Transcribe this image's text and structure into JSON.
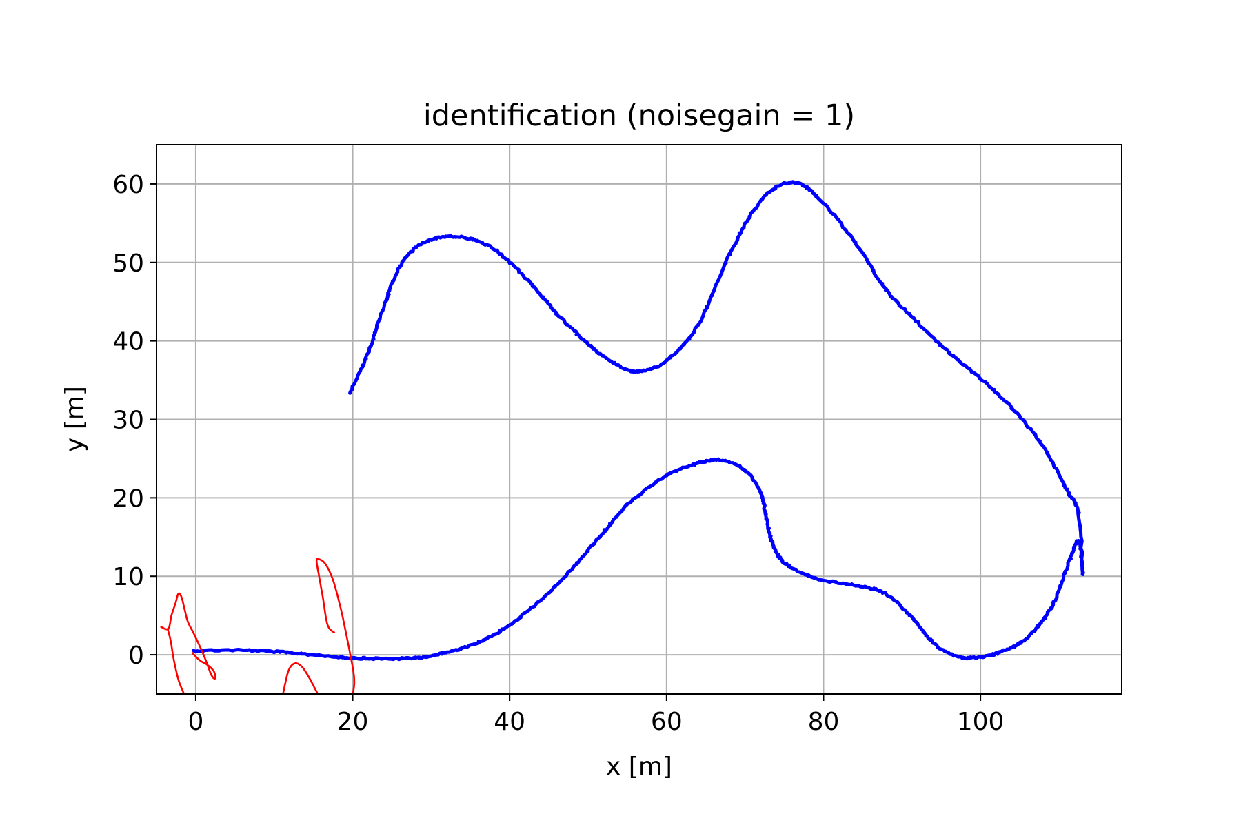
{
  "chart_data": {
    "type": "line",
    "title": "identification (noisegain = 1)",
    "xlabel": "x [m]",
    "ylabel": "y [m]",
    "xlim": [
      -5,
      118
    ],
    "ylim": [
      -5,
      65
    ],
    "xticks": [
      0,
      20,
      40,
      60,
      80,
      100
    ],
    "yticks": [
      0,
      10,
      20,
      30,
      40,
      50,
      60
    ],
    "grid": true,
    "legend": "none",
    "series": [
      {
        "color": "#0000ff",
        "style": "noisy-dots",
        "x": [
          -0.3,
          5,
          10,
          15,
          20,
          24,
          28,
          32,
          36,
          40,
          45,
          50,
          55,
          60,
          64,
          67,
          70,
          72,
          73,
          74,
          76,
          80,
          85,
          88,
          91,
          94,
          97,
          100,
          103,
          106,
          109,
          111,
          112.5,
          113,
          112.5,
          111,
          108,
          104,
          100,
          96,
          92,
          88,
          84,
          80,
          77,
          74,
          71,
          68,
          64,
          60,
          57,
          55,
          52,
          49,
          46,
          43,
          40,
          37,
          33,
          29,
          26,
          24,
          22,
          19.7
        ],
        "y": [
          0.5,
          0.6,
          0.4,
          0,
          -0.4,
          -0.5,
          -0.4,
          0.3,
          1.6,
          3.8,
          7.9,
          13.3,
          19.1,
          22.8,
          24.4,
          24.8,
          23.5,
          20.5,
          16,
          13,
          11,
          9.5,
          8.7,
          7.7,
          5,
          1.5,
          -0.2,
          -0.3,
          0.5,
          2.2,
          6,
          11,
          14.5,
          10.3,
          18,
          21,
          26.5,
          31.5,
          35.2,
          38.5,
          42.3,
          46.5,
          52.6,
          57.5,
          60,
          59.6,
          56.5,
          51,
          42,
          37.5,
          36.2,
          36.3,
          38,
          40.5,
          43.5,
          47,
          50,
          52.3,
          53.3,
          52.5,
          49.5,
          44.5,
          38.6,
          33.4
        ]
      },
      {
        "color": "#ff0000",
        "style": "line",
        "x": [
          -4.5,
          -3.5,
          -3.1,
          -2.6,
          -2.2,
          -1.8,
          -1.4,
          -1,
          -0.2,
          1,
          2,
          2.5,
          2.3,
          1.5,
          0.5,
          -0.5
        ],
        "y": [
          3.6,
          3.3,
          5,
          6.5,
          7.8,
          7.3,
          5.7,
          4.2,
          2.6,
          0,
          -2.6,
          -3,
          -2.1,
          -1.3,
          -0.7,
          0.3
        ]
      },
      {
        "color": "#ff0000",
        "style": "line",
        "x": [
          -3.6,
          -3.2,
          -2.8,
          -2.2,
          -1.4
        ],
        "y": [
          3.4,
          1.8,
          -0.6,
          -3.2,
          -5.2
        ]
      },
      {
        "color": "#ff0000",
        "style": "line",
        "x": [
          17.7,
          16.8,
          16.2,
          15.7,
          15.4,
          15.6,
          16.5,
          17.5,
          18.5,
          19.2,
          19.7,
          20.1,
          20.2,
          20
        ],
        "y": [
          2.8,
          3.8,
          7.3,
          10.1,
          11.9,
          12.2,
          11.6,
          9.5,
          5.8,
          2.5,
          0,
          -2.2,
          -3.7,
          -5.1
        ]
      },
      {
        "color": "#ff0000",
        "style": "line",
        "x": [
          11.1,
          11.8,
          12.6,
          13.5,
          14.5,
          15.6
        ],
        "y": [
          -5.1,
          -2.1,
          -1.1,
          -1.5,
          -3,
          -5.1
        ]
      }
    ]
  }
}
